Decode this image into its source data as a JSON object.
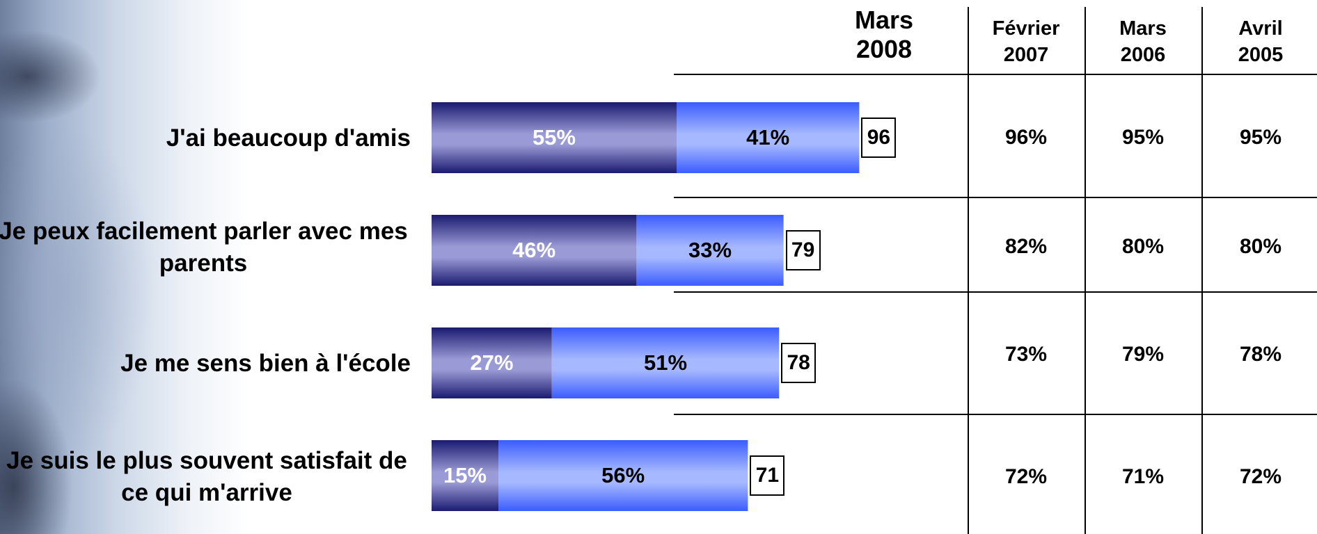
{
  "chart_data": {
    "type": "bar",
    "stacked": true,
    "orientation": "horizontal",
    "categories": [
      "J'ai beaucoup d'amis",
      "Je peux facilement parler avec mes parents",
      "Je me sens bien à l'école",
      "Je suis le plus souvent satisfait de ce qui m'arrive"
    ],
    "series": [
      {
        "values": [
          55,
          46,
          27,
          15
        ],
        "labels": [
          "55%",
          "46%",
          "27%",
          "15%"
        ],
        "color": "#1a1a70"
      },
      {
        "values": [
          41,
          33,
          51,
          56
        ],
        "labels": [
          "41%",
          "33%",
          "51%",
          "56%"
        ],
        "color": "#3b5cff"
      }
    ],
    "totals": [
      "96",
      "79",
      "78",
      "71"
    ],
    "current_period": "Mars 2008",
    "xlim": [
      0,
      100
    ]
  },
  "table": {
    "headers": [
      {
        "line1": "Mars",
        "line2": "2008"
      },
      {
        "line1": "Février",
        "line2": "2007"
      },
      {
        "line1": "Mars",
        "line2": "2006"
      },
      {
        "line1": "Avril",
        "line2": "2005"
      }
    ],
    "rows": [
      [
        "96%",
        "95%",
        "95%"
      ],
      [
        "82%",
        "80%",
        "80%"
      ],
      [
        "73%",
        "79%",
        "78%"
      ],
      [
        "72%",
        "71%",
        "72%"
      ]
    ]
  },
  "colors": {
    "dark_series": "#1a1a70",
    "light_series": "#3b5cff",
    "text": "#000000"
  }
}
